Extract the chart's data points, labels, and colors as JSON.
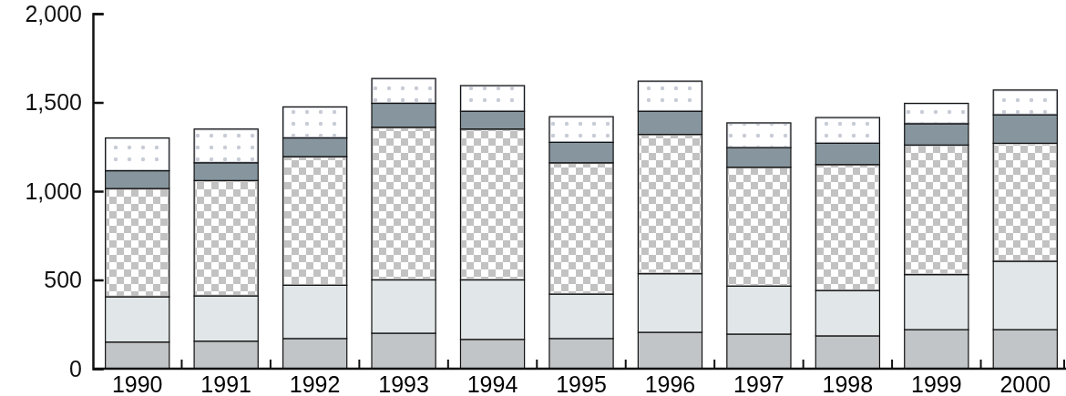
{
  "chart_data": {
    "type": "bar",
    "stacked": true,
    "categories": [
      "1990",
      "1991",
      "1992",
      "1993",
      "1994",
      "1995",
      "1996",
      "1997",
      "1998",
      "1999",
      "2000"
    ],
    "series": [
      {
        "color": "#c2c5c7",
        "values": [
          150,
          155,
          170,
          200,
          165,
          170,
          205,
          195,
          185,
          220,
          220
        ]
      },
      {
        "color": "#e1e6e8",
        "values": [
          255,
          255,
          300,
          300,
          335,
          250,
          330,
          270,
          255,
          310,
          385
        ]
      },
      {
        "color": "#c2c2c2",
        "values": [
          610,
          650,
          725,
          860,
          850,
          740,
          785,
          670,
          710,
          730,
          665
        ]
      },
      {
        "color": "#87969e",
        "values": [
          100,
          100,
          105,
          135,
          100,
          115,
          130,
          110,
          120,
          120,
          160
        ]
      },
      {
        "color": "#c8ccd6",
        "values": [
          185,
          190,
          175,
          140,
          145,
          145,
          170,
          140,
          145,
          115,
          140
        ]
      }
    ],
    "ylim": [
      0,
      2000
    ],
    "yticks": [
      0,
      {
        "value": 500,
        "label": "500"
      },
      {
        "value": 1000,
        "label": "1,000"
      },
      {
        "value": 1500,
        "label": "1,500"
      },
      {
        "value": 2000,
        "label": "2,000"
      }
    ],
    "grid": false
  }
}
